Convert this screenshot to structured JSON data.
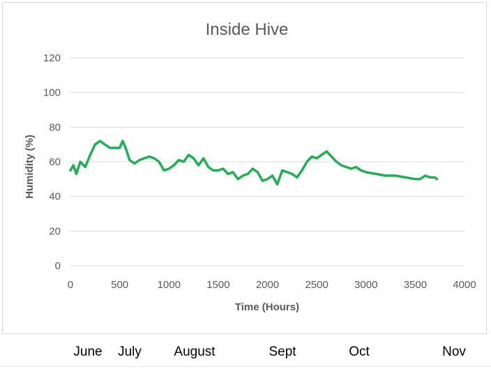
{
  "chart_data": {
    "type": "line",
    "title": "Inside Hive",
    "xlabel": "Time (Hours)",
    "ylabel": "Humidity (%)",
    "xlim": [
      0,
      4000
    ],
    "ylim": [
      0,
      120
    ],
    "x_ticks": [
      "0",
      "500",
      "1000",
      "1500",
      "2000",
      "2500",
      "3000",
      "3500",
      "4000"
    ],
    "y_ticks": [
      "0",
      "20",
      "40",
      "60",
      "80",
      "100",
      "120"
    ],
    "grid": "horizontal",
    "series_color": "#1db153",
    "series": [
      {
        "x": [
          0,
          30,
          60,
          100,
          150,
          200,
          250,
          300,
          350,
          400,
          450,
          500,
          530,
          560,
          600,
          650,
          700,
          750,
          800,
          850,
          900,
          950,
          1000,
          1050,
          1100,
          1150,
          1200,
          1250,
          1300,
          1350,
          1400,
          1450,
          1500,
          1550,
          1600,
          1650,
          1700,
          1750,
          1800,
          1850,
          1900,
          1950,
          2000,
          2050,
          2100,
          2150,
          2200,
          2250,
          2300,
          2350,
          2400,
          2450,
          2500,
          2550,
          2600,
          2650,
          2700,
          2750,
          2800,
          2850,
          2900,
          2950,
          3000,
          3100,
          3200,
          3300,
          3400,
          3500,
          3550,
          3600,
          3650,
          3700,
          3720
        ],
        "y": [
          55,
          58,
          53,
          60,
          57,
          64,
          70,
          72,
          70,
          68,
          68,
          68,
          72,
          68,
          61,
          59,
          61,
          62,
          63,
          62,
          60,
          55,
          56,
          58,
          61,
          60,
          64,
          62,
          58,
          62,
          57,
          55,
          55,
          56,
          53,
          54,
          50,
          52,
          53,
          56,
          54,
          49,
          50,
          52,
          47,
          55,
          54,
          53,
          51,
          55,
          60,
          63,
          62,
          64,
          66,
          63,
          60,
          58,
          57,
          56,
          57,
          55,
          54,
          53,
          52,
          52,
          51,
          50,
          50,
          52,
          51,
          51,
          50
        ]
      }
    ]
  },
  "months": [
    "June",
    "July",
    "August",
    "Sept",
    "Oct",
    "Nov"
  ]
}
